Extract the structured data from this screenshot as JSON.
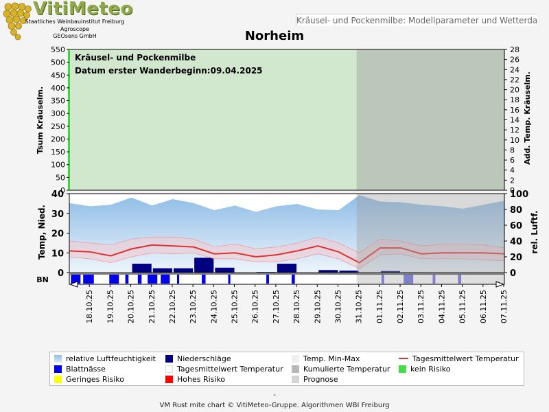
{
  "header": {
    "logo_text": "VitiMeteo",
    "logo_lines": [
      "Staatliches Weinbauinstitut Freiburg",
      "Agroscope",
      "GEOsens GmbH"
    ],
    "subtitle": "Kräusel- und Pockenmilbe: Modellparameter und Wetterdaten",
    "title": "Norheim"
  },
  "colors": {
    "no_risk_bg": "#d2e8ce",
    "no_risk_bar": "#33dd33",
    "forecast_shade": "#a0a0a0",
    "humidity": "#8fbde6",
    "precip": "#000080",
    "temp_line": "#e03030",
    "temp_band": "#f6c9cc",
    "leaf_wetness": "#0000ee",
    "leaf_wetness_forecast": "#6f6fe0"
  },
  "chart_data": [
    {
      "type": "area",
      "panel": "model",
      "annotation": [
        "Kräusel- und Pockenmilbe",
        "Datum  erster Wanderbeginn:09.04.2025"
      ],
      "ylabel": "Tsum Kräuselm.",
      "ylabel_right": "Add. Temp. Kräuselm.",
      "ylim": [
        0,
        550
      ],
      "y_ticks": [
        0,
        50,
        100,
        150,
        200,
        250,
        300,
        350,
        400,
        450,
        500,
        550
      ],
      "ylim_right": [
        0,
        28
      ],
      "y_ticks_right": [
        0,
        2,
        4,
        6,
        8,
        10,
        12,
        14,
        16,
        18,
        20,
        22,
        24,
        26,
        28
      ],
      "risk_level": "kein Risiko"
    },
    {
      "type": "line",
      "panel": "weather",
      "ylabel": "Temp, Nied.",
      "ylabel_right": "rel. Luftf.",
      "ylim": [
        0,
        40
      ],
      "y_ticks": [
        0,
        10,
        20,
        30,
        40
      ],
      "ylim_right": [
        0,
        100
      ],
      "y_ticks_right": [
        0,
        20,
        40,
        60,
        80,
        100
      ],
      "x_labels": [
        "18.10.25",
        "19.10.25",
        "20.10.25",
        "21.10.25",
        "22.10.25",
        "23.10.25",
        "24.10.25",
        "25.10.25",
        "26.10.25",
        "27.10.25",
        "28.10.25",
        "29.10.25",
        "30.10.25",
        "31.10.25",
        "01.11.25",
        "02.11.25",
        "03.11.25",
        "04.11.25",
        "05.11.25",
        "06.11.25",
        "07.11.25"
      ],
      "forecast_start_index": 14,
      "series": [
        {
          "name": "relative Luftfeuchtigkeit",
          "values": [
            88,
            84,
            86,
            95,
            85,
            93,
            88,
            79,
            85,
            77,
            84,
            87,
            80,
            79,
            98,
            90,
            89,
            86,
            84,
            81,
            86,
            91
          ]
        },
        {
          "name": "Niederschläge",
          "values": [
            0,
            0,
            0,
            4.5,
            2.2,
            2.2,
            7.5,
            2.5,
            0,
            0.3,
            4.5,
            0,
            1.3,
            1.0,
            0,
            0.8,
            0.2,
            0,
            0,
            0,
            0
          ]
        },
        {
          "name": "Tagesmittelwert Temperatur",
          "values": [
            11,
            10.5,
            8.5,
            12,
            14,
            13.5,
            13,
            9.5,
            10,
            8,
            9,
            11,
            13.5,
            10.5,
            5,
            12.5,
            12.5,
            9.5,
            10,
            10,
            10,
            9.5
          ]
        },
        {
          "name": "Temp. Min-Max",
          "min": [
            8,
            7,
            5,
            8,
            10,
            9.5,
            10,
            7,
            7,
            5.5,
            5.5,
            7,
            9.5,
            7,
            2,
            9,
            9.5,
            7,
            7,
            7,
            6.5,
            6
          ],
          "max": [
            16,
            15,
            14,
            17,
            18,
            18,
            17,
            13,
            14.5,
            12,
            13,
            15,
            18,
            15,
            10,
            17,
            16,
            13.5,
            14.5,
            14.5,
            14,
            12.5
          ]
        }
      ]
    },
    {
      "type": "bar",
      "panel": "leaf_wetness",
      "ylabel": "BN",
      "series": [
        {
          "name": "Blattnässe",
          "values": [
            18,
            20,
            0,
            18,
            6,
            7,
            18,
            17,
            4,
            0,
            7,
            0,
            4,
            0,
            0,
            5,
            0,
            6,
            0,
            0,
            0,
            0,
            0,
            0,
            5,
            0,
            18,
            0,
            5,
            0,
            6,
            0,
            0,
            0
          ]
        }
      ]
    }
  ],
  "legend": [
    {
      "label": "relative Luftfeuchtigkeit",
      "symbol": "gradient-humidity"
    },
    {
      "label": "Niederschläge",
      "symbol": "precip"
    },
    {
      "label": "Temp. Min-Max",
      "symbol": "band"
    },
    {
      "label": "Tagesmittelwert Temperatur",
      "symbol": "line-red"
    },
    {
      "label": "Blattnässe",
      "symbol": "leaf"
    },
    {
      "label": "Tagesmittelwert Temperatur",
      "symbol": "empty"
    },
    {
      "label": "Kumulierte Temperatur",
      "symbol": "gray"
    },
    {
      "label": "kein Risiko",
      "symbol": "green"
    },
    {
      "label": "Geringes Risiko",
      "symbol": "yellow"
    },
    {
      "label": "Hohes Risiko",
      "symbol": "red"
    },
    {
      "label": "Prognose",
      "symbol": "lightgray"
    }
  ],
  "footer": {
    "dash": "-",
    "text": "VM Rust mite chart © VitiMeteo-Gruppe. Algorithmen WBI Freiburg"
  }
}
